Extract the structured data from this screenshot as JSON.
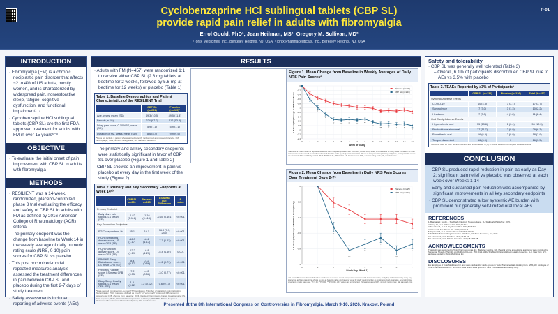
{
  "header": {
    "poster_number": "P-01",
    "title_line1": "Cyclobenzaprine HCl sublingual tablets (CBP SL)",
    "title_line2": "provide rapid pain relief in adults with fibromyalgia",
    "authors": "Errol Gould, PhD¹; Jean Heilman, MS²; Gregory M. Sullivan, MD²",
    "affiliations": "¹Tonix Medicines, Inc., Berkeley Heights, NJ, USA; ²Tonix Pharmaceuticals, Inc., Berkeley Heights, NJ, USA"
  },
  "introduction": {
    "heading": "INTRODUCTION",
    "bullets": [
      "Fibromyalgia (FM) is a chronic nociplastic pain disorder that affects ~2 to 4% of US adults, mostly women, and is characterized by widespread pain, nonrestorative sleep, fatigue, cognitive dysfunction, and functional impairment¹⁻⁵",
      "Cyclobenzaprine HCl sublingual tablets (CBP SL) are the first FDA-approved treatment for adults with FM in over 15 years⁶⁻⁸"
    ]
  },
  "objective": {
    "heading": "OBJECTIVE",
    "bullets": [
      "To evaluate the initial onset of pain improvement with CBP SL in adults with fibromyalgia"
    ]
  },
  "methods": {
    "heading": "METHODS",
    "bullets": [
      "RESILIENT was a 14-week, randomized, placebo-controlled phase 3 trial evaluating the efficacy and safety of CBP SL in adults with FM as defined by 2016 American College of Rheumatology (ACR) criteria",
      "The primary endpoint was the change from baseline to Week 14 in the weekly average of daily numeric rating scale (NRS, 0-10) pain scores for CBP SL vs placebo",
      "This post hoc mixed-model repeated-measures analysis assessed the treatment differences in pain between CBP SL and placebo during the first 2-7 days of study treatment",
      "Safety assessments included reporting of adverse events (AEs)"
    ]
  },
  "results": {
    "heading": "RESULTS",
    "bullet1": "Adults with FM (N=457) were randomized 1:1 to receive either CBP SL (2.8 mg tablets at bedtime for 2 weeks, followed by 5.6 mg at bedtime for 12 weeks) or placebo (Table 1)",
    "bullet2": "The primary and all key secondary endpoints were statistically significant in favor of CBP SL over placebo (Figure 1 and Table 2)",
    "bullet3": "CBP SL showed an improvement in pain vs placebo at every day in the first week of the study (Figure 2)",
    "table1": {
      "caption": "Table 1. Baseline Demographics and Patient Characteristics of the RESILIENT Trial",
      "headers": [
        "",
        "CBP SL (n=231)",
        "Placebo (n=225)ᵃ"
      ],
      "rows": [
        [
          "Age, years, mean (SD)",
          "49.3 (10.5)",
          "49.5 (11.4)"
        ],
        [
          "Female, n (%)",
          "224 (97.0)",
          "212 (93.8)"
        ],
        [
          "Diary pain score, 0-10 NRS, mean (SD)",
          "5.9 (1.1)",
          "5.9 (1.1)"
        ],
        [
          "Duration of FM, years, mean (SD)",
          "8.6 (8.4)",
          "9.9 (9.5)"
        ]
      ],
      "footnote": "ᵃDoes not include 1 patient who was inadvertently randomized and received placebo. FM, fibromyalgia; NRS, numeric rating scale; SD, standard deviation."
    },
    "table2": {
      "caption": "Table 2. Primary and Key Secondary Endpoints at Week 14ᵃᵇ",
      "headers": [
        "",
        "CBP SL n=231",
        "Placebo n=225",
        "LS Mean (SE) Difference",
        "P value"
      ],
      "sections": [
        {
          "label": "Primary Endpoint",
          "rows": [
            [
              "Daily diary pain ratings, LS Mean (SE)",
              "-1.82 (0.116)",
              "-1.16 (0.118)",
              "-0.65 (0.161)",
              "<0.001"
            ]
          ]
        },
        {
          "label": "Key Secondary Endpoints",
          "rows": [
            [
              "PGIC responders, %",
              "35.1",
              "19.1",
              "16.0 (7.9, 24.0)",
              "<0.001"
            ],
            [
              "FIQR-Symptoms domain score, LS mean CFB (SE)",
              "-16.0 (1.17)",
              "-8.4 (1.17)",
              "-7.7 (1.62)",
              "<0.001"
            ],
            [
              "FIQR-Function domain score, LS mean CFB (SE)",
              "-12.2 (1.19)",
              "-6.8 (1.21)",
              "-5.4 (1.66)",
              "0.001"
            ],
            [
              "PROMIS Sleep Disturbance score, LS mean CFB (SE)",
              "-8.4 (0.57)",
              "-4.2 (0.56)",
              "-4.2 (0.79)",
              "<0.001"
            ],
            [
              "PROMIS Fatigue score, LS mean CFB (SE)",
              "-7.2 (0.55)",
              "-4.2 (0.56)",
              "-3.0 (0.77)",
              "<0.001"
            ],
            [
              "Diary Sleep Quality ratings, LS mean CFB (SE)",
              "1.8 (0.12)",
              "1.2 (0.12)",
              "0.6 (0.17)",
              "<0.001"
            ]
          ]
        }
      ],
      "footnote": "ᵃData derived from intention-to-treat (ITT) population. ᵇNumber of statistical analysis looking hierarchically. PGIC response defined as \"much\" or \"very much\" improved. Differences in proportions. CFB, change from baseline; FIQR, Revised Fibromyalgia Impact Questionnaire; LS, least squares; PGIC, Patient Global Impression of Change; PROMIS, Patient-Reported Outcomes Measurement Information System; SE, standard error."
    }
  },
  "figure1": {
    "caption": "Figure 1. Mean Change from Baseline in Weekly Averages of Daily NRS Pain Scoresᵃ",
    "footnote": "ᵃBased on a mixed model for repeated measures with multiple imputation, with treatment, center, study week, and treatment by study week interaction as fixed categorical effects, as well as baseline value and baseline value by study week interaction. Weeks 1-13 represent exploratory endpoints, and reported P values are uncorrected for multiplicity control. *P<0.05; **P<0.01; ***P<0.001. LS, least squares; NRS, numeric rating scale; SE, standard error."
  },
  "figure2": {
    "caption": "Figure 2. Mean Change from Baseline in Daily NRS Pain Scores Over Treatment Days 2-7ᵃ",
    "footnote": "ᵃLS mean differences, SEs and P values are based on a mixed model for repeated measures with treatment, center, study day and treatment by study day interaction as fixed categorical effects as well as baseline value and baseline value by study day interaction as continuous fixed covariates. An unstructured covariance matrix was used. *P<0.05; **P<0.01; ***P<0.001. All P values are uncorrected. LS, least squares; NRS, numeric rating scale; SE, standard error."
  },
  "chart_data": [
    {
      "type": "line",
      "title": "Figure 1. Mean Change from Baseline in Weekly Averages of Daily NRS Pain Scores",
      "xlabel": "Week of Study",
      "ylabel": "LS Mean (SE) Change in NRS Pain Score",
      "x": [
        0,
        1,
        2,
        3,
        4,
        5,
        6,
        7,
        8,
        9,
        10,
        11,
        12,
        13,
        14
      ],
      "xlim": [
        0,
        14
      ],
      "ylim": [
        -2.4,
        0
      ],
      "yticks": [
        0,
        -0.2,
        -0.4,
        -0.6,
        -0.8,
        -1,
        -1.2,
        -1.4,
        -1.6,
        -1.8,
        -2,
        -2.2,
        -2.4
      ],
      "grid": true,
      "legend": "top-right",
      "series": [
        {
          "name": "Placebo (n=226)",
          "color": "#e8383d",
          "values": [
            0,
            -0.36,
            -0.55,
            -0.68,
            -0.8,
            -0.87,
            -0.91,
            -0.97,
            -0.98,
            -1.02,
            -1.14,
            -1.12,
            -1.14,
            -1.09,
            -1.17
          ],
          "se": 0.08
        },
        {
          "name": "CBP SL (n=231)",
          "color": "#2a6a8e",
          "values": [
            0,
            -0.62,
            -0.98,
            -1.28,
            -1.52,
            -1.55,
            -1.52,
            -1.55,
            -1.5,
            -1.64,
            -1.72,
            -1.7,
            -1.74,
            -1.72,
            -1.8
          ],
          "se": 0.08
        }
      ],
      "significance": [
        "",
        "*",
        "*",
        "*",
        "**",
        "***",
        "**",
        "**",
        "**",
        "**",
        "**",
        "**",
        "*",
        "*",
        "**"
      ]
    },
    {
      "type": "line",
      "title": "Figure 2. Mean Change from Baseline in Daily NRS Pain Scores Over Treatment Days 2-7",
      "xlabel": "Study Day (Week 1)",
      "ylabel": "LS Mean (SE) Change in NRS Pain Score (Study)",
      "x": [
        1,
        2,
        3,
        4,
        5,
        6,
        7
      ],
      "xlim": [
        0,
        7
      ],
      "ylim": [
        -1.0,
        0
      ],
      "yticks": [
        0,
        -0.2,
        -0.4,
        -0.6,
        -0.8,
        -1.0
      ],
      "grid": true,
      "legend": "top-right",
      "series": [
        {
          "name": "Placebo (n=225)",
          "color": "#e8383d",
          "values": [
            0,
            -0.21,
            -0.3,
            -0.42,
            -0.42,
            -0.42,
            -0.48
          ],
          "se": 0.06
        },
        {
          "name": "CBP SL (n=231)",
          "color": "#2a6a8e",
          "values": [
            0,
            -0.52,
            -0.82,
            -0.74,
            -0.66,
            -0.82,
            -0.74
          ],
          "se": 0.06
        }
      ],
      "significance": [
        "",
        "*",
        "***",
        "**",
        "*",
        "***",
        "*"
      ]
    }
  ],
  "safety": {
    "heading": "Safety and tolerability",
    "bullet": "CBP SL was generally well tolerated (Table 3)",
    "sub": "Overall, 6.1% of participants discontinued CBP SL due to AEs vs 3.5% with placebo",
    "table3": {
      "caption": "Table 3. TEAEs Reported by ≥3% of Participantsᵃ",
      "headers": [
        "",
        "CBP SL (n=231)",
        "Placebo (n=226)",
        "Total (N=457)"
      ],
      "sections": [
        {
          "label": "Systemic Adverse Events",
          "rows": [
            [
              "COVID-19",
              "10 (4.3)",
              "7 (3.1)",
              "17 (3.7)"
            ],
            [
              "Somnolence",
              "7 (3.0)",
              "3 (1.3)",
              "10 (2.2)"
            ],
            [
              "Headache",
              "7 (3.0)",
              "4 (1.8)",
              "11 (2.4)"
            ]
          ]
        },
        {
          "label": "Oral Cavity Adverse Events",
          "rows": [
            [
              "Hypoesthesia oral",
              "55 (23.8)",
              "1 (0.4)",
              "56 (12.3)"
            ],
            [
              "Product taste abnormal",
              "27 (11.7)",
              "2 (0.9)",
              "29 (6.3)"
            ],
            [
              "Paresthesia oral",
              "16 (6.9)",
              "2 (0.9)",
              "18 (3.9)"
            ],
            [
              "Tongue discomfort",
              "16 (6.9)",
              "0",
              "16 (3.5)"
            ]
          ]
        }
      ],
      "footnote": "ᵃOutcome data for CBP SL and placebo are presented as n (%). TEAEs, treatment-emergent adverse events."
    }
  },
  "conclusion": {
    "heading": "CONCLUSION",
    "bullets": [
      "CBP SL produced rapid reduction in pain as early as Day 2; significant pain relief vs placebo was observed at each week over Weeks 1-14",
      "Early and sustained pain reduction was accompanied by significant improvements in all key secondary endpoints",
      "CBP SL demonstrated a low systemic AE burden with prominent but generally self-limited oral local AEs"
    ]
  },
  "references": {
    "heading": "REFERENCES",
    "items": [
      "1. Bhargava J, Goldin J. StatPearls [Internet]. Treasure Island, FL: StatPearls Publishing; 2025.",
      "2. Kang JH, et al. J Rheum Dis. 2022;29:4-13.",
      "3. Theadom A, et al. J Psychosom Res. 2007;62:519-31.",
      "4. Clauw DJ. Ann Rheum Dis. 2024;83:1421-7.",
      "5. Kaplan CM, et al. Nat Rev Neurol. 2024;20:347-63.",
      "6. TONMYA™ Prescribing Information. Chatham, NJ: Tonix Medicines, Inc; 2025.",
      "7. Lederman S, et al. Pain Med. 2025;27:85-94.",
      "8. Lederman S, et al. Arthritis Care Res. 2023;75:2359-68."
    ]
  },
  "acknowledgments": {
    "heading": "ACKNOWLEDGMENTS",
    "text": "This study was supported by Tonix Pharmaceuticals, Inc. (Berkeley Heights, NJ). Medical writing and editorial assistance were provided by Sanjeevan Thanda (PharmD) and Anthony DiLauro, PhD, CLS, of the ScioMed Division of Woven Health Collective, LLC (New York, NY), and were funded by Tonix Medicines, Inc."
  },
  "disclosures": {
    "heading": "DISCLOSURES",
    "text": "EG: Employee of Tonix Medicines, Inc. and owns stock and/or stock options in Tonix Pharmaceuticals Holding Corp. GMS, JH: Employee of Tonix Pharmaceuticals, Inc. and owns stock and/or stock options in Tonix Pharmaceuticals Holding Corp."
  },
  "footer": {
    "text": "Presented at the 8th International Congress on Controversies in Fibromyalgia, March 9-10, 2026, Krakow, Poland"
  }
}
